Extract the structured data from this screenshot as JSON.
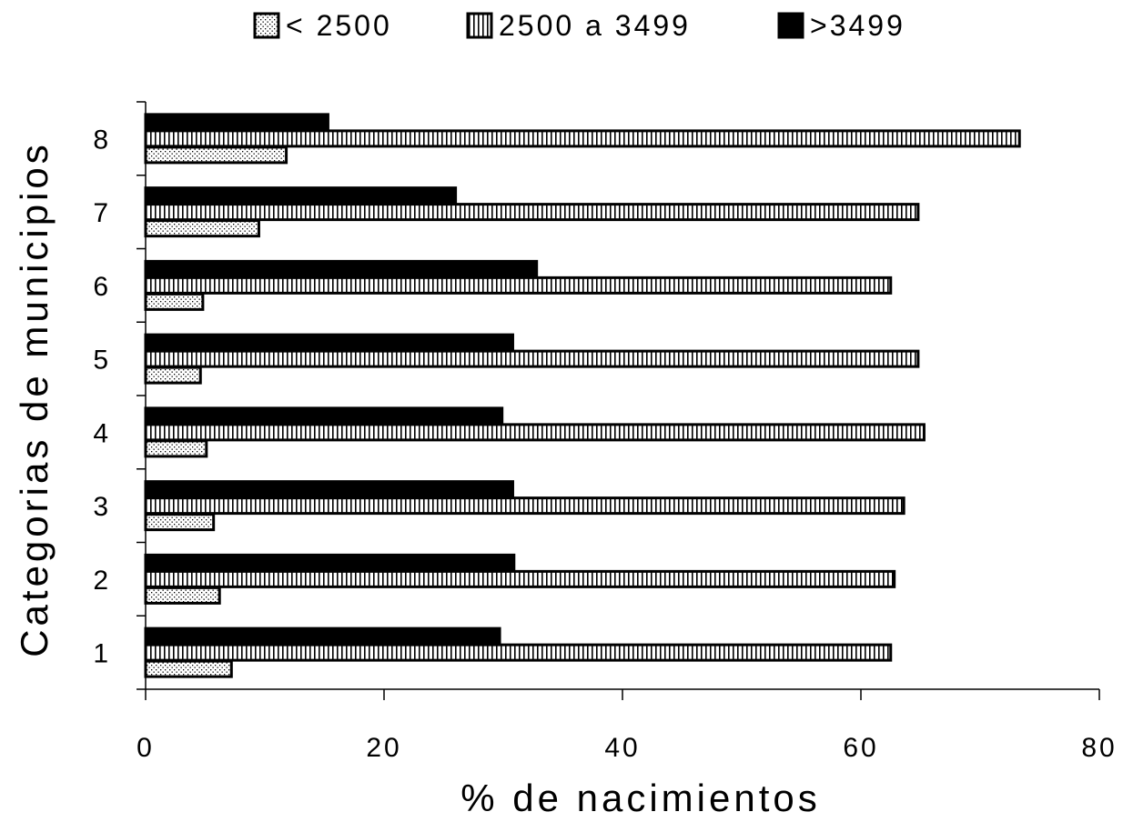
{
  "chart_data": {
    "type": "bar",
    "orientation": "horizontal",
    "title": "",
    "xlabel": "% de nacimientos",
    "ylabel": "Categorias de municipios",
    "categories": [
      "1",
      "2",
      "3",
      "4",
      "5",
      "6",
      "7",
      "8"
    ],
    "series": [
      {
        "name": "< 2500",
        "pattern": "dotted",
        "values": [
          7.2,
          6.2,
          5.7,
          5.1,
          4.6,
          4.8,
          9.5,
          11.8
        ]
      },
      {
        "name": "2500 a 3499",
        "pattern": "vertical-stripes",
        "values": [
          62.5,
          62.8,
          63.6,
          65.3,
          64.8,
          62.5,
          64.8,
          73.3
        ]
      },
      {
        "name": ">3499",
        "pattern": "solid",
        "color": "#000000",
        "values": [
          29.7,
          30.9,
          30.8,
          29.9,
          30.8,
          32.8,
          26.0,
          15.3
        ]
      }
    ],
    "xlim": [
      0,
      80
    ],
    "xticks": [
      "0",
      "20",
      "40",
      "60",
      "80"
    ],
    "grid": false,
    "legend": "top"
  }
}
